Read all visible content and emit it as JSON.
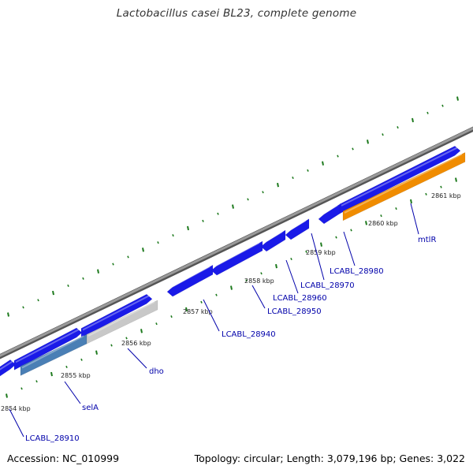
{
  "title": "Lactobacillus casei BL23, complete genome",
  "footer": {
    "accession": "Accession: NC_010999",
    "stats": "Topology: circular; Length: 3,079,196 bp; Genes: 3,022"
  },
  "colors": {
    "backbone": "#888888",
    "forward_gene": "#1a1ae8",
    "reverse_gene": "#4a7fb5",
    "pseudo_gene": "#c8c8c8",
    "mtlR_gene": "#f08c00",
    "tick": "#1e7a1e",
    "label": "#0000aa"
  },
  "ticks": [
    {
      "label": "2854 kbp"
    },
    {
      "label": "2855 kbp"
    },
    {
      "label": "2856 kbp"
    },
    {
      "label": "2857 kbp"
    },
    {
      "label": "2858 kbp"
    },
    {
      "label": "2859 kbp"
    },
    {
      "label": "2860 kbp"
    },
    {
      "label": "2861 kbp"
    }
  ],
  "genes": [
    {
      "name": "LCABL_28910",
      "strand": "forward"
    },
    {
      "name": "selA",
      "strand": "reverse"
    },
    {
      "name": "dho",
      "strand": "reverse"
    },
    {
      "name": "LCABL_28940",
      "strand": "forward"
    },
    {
      "name": "LCABL_28950",
      "strand": "forward"
    },
    {
      "name": "LCABL_28960",
      "strand": "forward"
    },
    {
      "name": "LCABL_28970",
      "strand": "forward"
    },
    {
      "name": "LCABL_28980",
      "strand": "forward"
    },
    {
      "name": "mtlR",
      "strand": "reverse"
    }
  ]
}
